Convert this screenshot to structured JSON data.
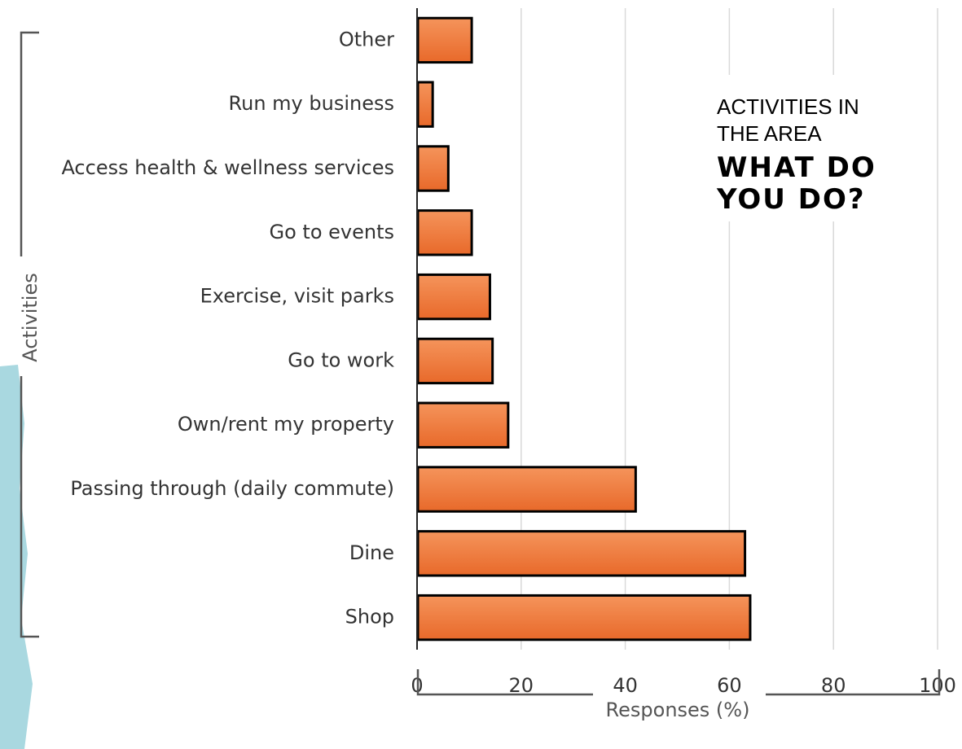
{
  "header": {
    "line1": "ACTIVITIES IN",
    "line2": "THE AREA",
    "question_line1": "WHAT DO",
    "question_line2": "YOU DO?"
  },
  "colors": {
    "bar_fill_top": "#f5945b",
    "bar_fill_bottom": "#e8692a",
    "bar_stroke": "#000000",
    "grid": "#d9d9d9",
    "bracket": "#555555",
    "decor": "#a9d8e0"
  },
  "chart_data": {
    "type": "bar",
    "orientation": "horizontal",
    "categories": [
      "Other",
      "Run my business",
      "Access health & wellness services",
      "Go to events",
      "Exercise, visit parks",
      "Go to work",
      "Own/rent my property",
      "Passing through (daily commute)",
      "Dine",
      "Shop"
    ],
    "values": [
      10.5,
      3,
      6,
      10.5,
      14,
      14.5,
      17.5,
      42,
      63,
      64
    ],
    "xlabel": "Responses (%)",
    "ylabel": "Activities",
    "xlim": [
      0,
      100
    ],
    "xticks": [
      "0",
      "20",
      "40",
      "60",
      "80",
      "100"
    ],
    "xtick_values": [
      0,
      20,
      40,
      60,
      80,
      100
    ],
    "grid": true
  }
}
